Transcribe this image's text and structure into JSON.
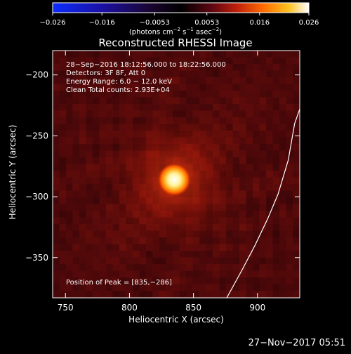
{
  "colorbar": {
    "ticks": [
      "−0.026",
      "−0.016",
      "−0.0053",
      "0.0053",
      "0.016",
      "0.026"
    ],
    "tick_values": [
      -0.026,
      -0.016,
      -0.0053,
      0.0053,
      0.016,
      0.026
    ],
    "range": [
      -0.026,
      0.026
    ],
    "label_prefix": "(photons cm",
    "label_exp1": "−2",
    "label_mid": " s",
    "label_exp2": "−1",
    "label_mid2": " asec",
    "label_exp3": "−2",
    "label_suffix": ")"
  },
  "title": "Reconstructed RHESSI Image",
  "info_lines": [
    "28−Sep−2016 18:12:56.000 to 18:22:56.000",
    "Detectors: 3F 8F, Att 0",
    "Energy Range: 6.0 − 12.0 keV",
    "Clean    Total counts: 2.93E+04"
  ],
  "peak_text": "Position of Peak = [835,−286]",
  "footer_date": "27−Nov−2017 05:51",
  "chart_data": {
    "type": "heatmap",
    "title": "Reconstructed RHESSI Image",
    "xlabel": "Heliocentric X (arcsec)",
    "ylabel": "Heliocentric Y (arcsec)",
    "xlim": [
      740,
      933
    ],
    "ylim": [
      -383,
      -180
    ],
    "x_ticks": [
      750,
      800,
      850,
      900
    ],
    "x_tick_labels": [
      "750",
      "800",
      "850",
      "900"
    ],
    "y_ticks": [
      -200,
      -250,
      -300,
      -350
    ],
    "y_tick_labels": [
      "−200",
      "−250",
      "−300",
      "−350"
    ],
    "peak": [
      835,
      -286
    ],
    "limb_curve": [
      [
        876,
        -383
      ],
      [
        888,
        -360
      ],
      [
        898,
        -340
      ],
      [
        908,
        -318
      ],
      [
        916,
        -298
      ],
      [
        924,
        -270
      ],
      [
        929,
        -240
      ],
      [
        933,
        -228
      ]
    ],
    "colormap": [
      "#1020ff",
      "#1a0a8a",
      "#000000",
      "#8a0a10",
      "#ff7a00",
      "#ffffff"
    ]
  }
}
